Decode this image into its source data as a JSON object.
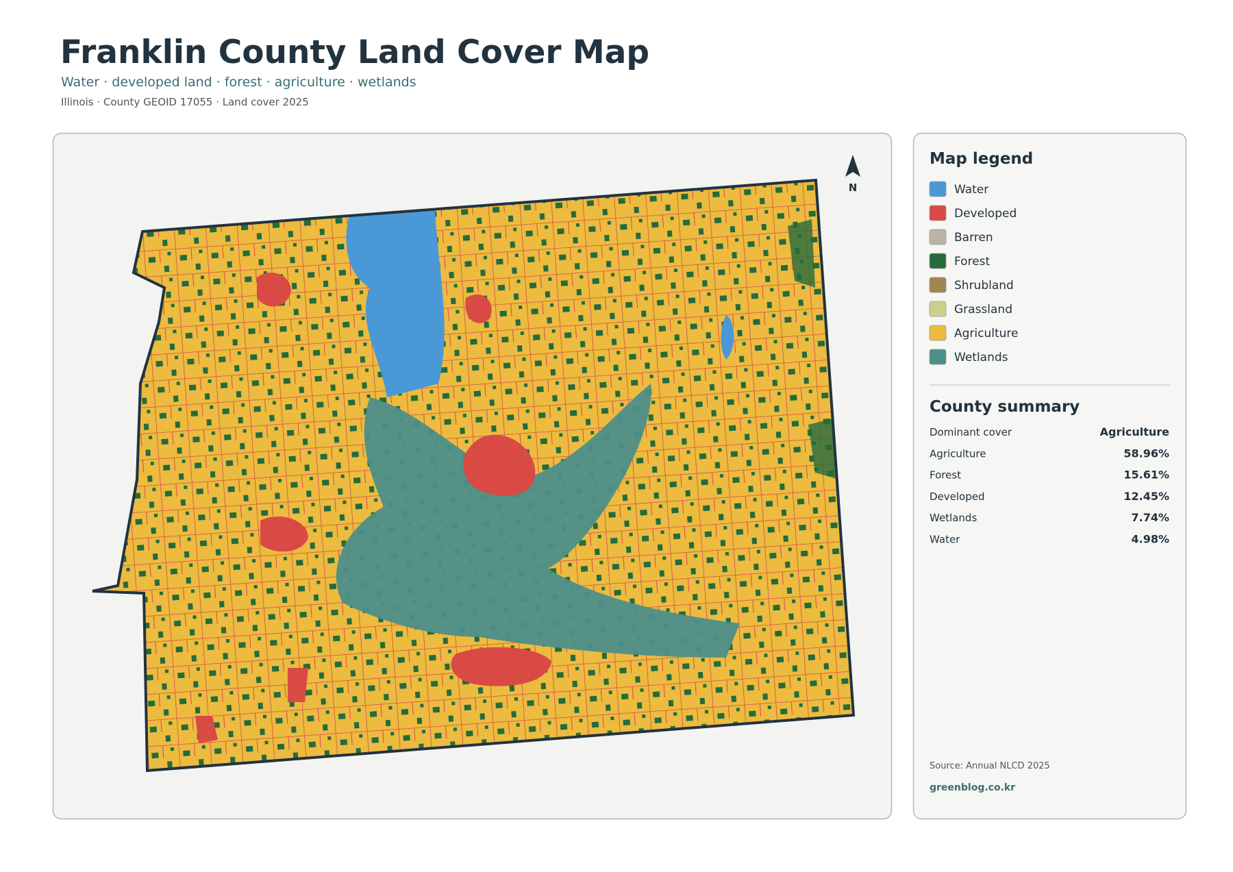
{
  "header": {
    "title": "Franklin County Land Cover Map",
    "subtitle": "Water · developed land · forest · agriculture · wetlands",
    "meta": "Illinois · County GEOID 17055 · Land cover 2025"
  },
  "map": {
    "north": "N"
  },
  "legend": {
    "title": "Map legend",
    "items": [
      {
        "label": "Water",
        "color": "#4a98d6"
      },
      {
        "label": "Developed",
        "color": "#d94a45"
      },
      {
        "label": "Barren",
        "color": "#bdb5a3"
      },
      {
        "label": "Forest",
        "color": "#256b3c"
      },
      {
        "label": "Shrubland",
        "color": "#a08653"
      },
      {
        "label": "Grassland",
        "color": "#cccf8a"
      },
      {
        "label": "Agriculture",
        "color": "#ecbb40"
      },
      {
        "label": "Wetlands",
        "color": "#4d8f89"
      }
    ]
  },
  "summary": {
    "title": "County summary",
    "rows": [
      [
        "Dominant cover",
        "Agriculture"
      ],
      [
        "Agriculture",
        "58.96%"
      ],
      [
        "Forest",
        "15.61%"
      ],
      [
        "Developed",
        "12.45%"
      ],
      [
        "Wetlands",
        "7.74%"
      ],
      [
        "Water",
        "4.98%"
      ]
    ]
  },
  "footer": {
    "source": "Source: Annual NLCD 2025",
    "site": "greenblog.co.kr"
  }
}
